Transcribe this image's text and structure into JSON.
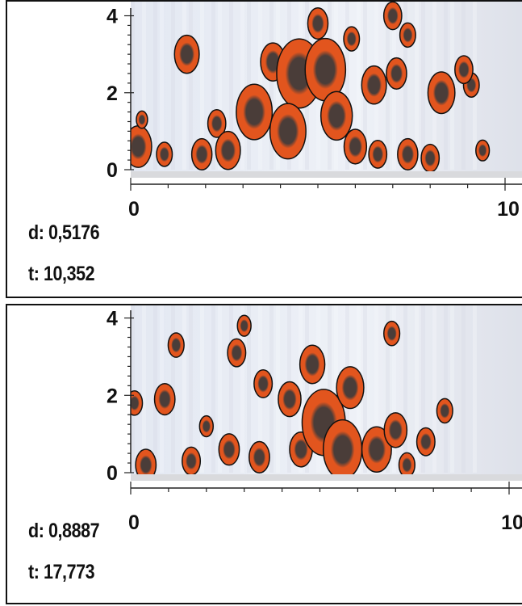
{
  "chart_data": [
    {
      "type": "heatmap",
      "title": "",
      "xlabel": "",
      "ylabel": "",
      "xlim": [
        0,
        10
      ],
      "ylim": [
        0,
        4.2
      ],
      "x_ticks": [
        "0",
        "10"
      ],
      "y_ticks": [
        "0",
        "2",
        "4"
      ],
      "readouts": {
        "d": "d: 0,5176",
        "t": "t: 10,352"
      },
      "colors": {
        "background": "#e8ecf4",
        "low": "#dfe4ee",
        "mid": "#e2551e",
        "high": "#4a3d39",
        "outline": "#111111"
      },
      "blobs": [
        {
          "x": 0.2,
          "y": 0.6,
          "r": 0.6
        },
        {
          "x": 0.3,
          "y": 1.3,
          "r": 0.25
        },
        {
          "x": 0.9,
          "y": 0.4,
          "r": 0.35
        },
        {
          "x": 1.5,
          "y": 3.0,
          "r": 0.55
        },
        {
          "x": 1.9,
          "y": 0.4,
          "r": 0.45
        },
        {
          "x": 2.3,
          "y": 1.2,
          "r": 0.4
        },
        {
          "x": 2.6,
          "y": 0.5,
          "r": 0.55
        },
        {
          "x": 3.3,
          "y": 1.5,
          "r": 0.8
        },
        {
          "x": 3.8,
          "y": 2.8,
          "r": 0.55
        },
        {
          "x": 4.5,
          "y": 2.5,
          "r": 1.0
        },
        {
          "x": 4.2,
          "y": 1.0,
          "r": 0.8
        },
        {
          "x": 5.2,
          "y": 2.6,
          "r": 0.9
        },
        {
          "x": 5.0,
          "y": 3.8,
          "r": 0.45
        },
        {
          "x": 5.5,
          "y": 1.4,
          "r": 0.7
        },
        {
          "x": 6.0,
          "y": 0.6,
          "r": 0.5
        },
        {
          "x": 6.5,
          "y": 2.2,
          "r": 0.55
        },
        {
          "x": 6.6,
          "y": 0.4,
          "r": 0.4
        },
        {
          "x": 7.1,
          "y": 2.5,
          "r": 0.45
        },
        {
          "x": 7.0,
          "y": 4.0,
          "r": 0.4
        },
        {
          "x": 7.4,
          "y": 3.5,
          "r": 0.35
        },
        {
          "x": 7.4,
          "y": 0.4,
          "r": 0.45
        },
        {
          "x": 8.0,
          "y": 0.3,
          "r": 0.4
        },
        {
          "x": 8.3,
          "y": 2.0,
          "r": 0.6
        },
        {
          "x": 9.1,
          "y": 2.2,
          "r": 0.35
        },
        {
          "x": 9.4,
          "y": 0.5,
          "r": 0.3
        },
        {
          "x": 5.9,
          "y": 3.4,
          "r": 0.35
        },
        {
          "x": 8.9,
          "y": 2.6,
          "r": 0.4
        }
      ]
    },
    {
      "type": "heatmap",
      "title": "",
      "xlabel": "",
      "ylabel": "",
      "xlim": [
        0,
        10
      ],
      "ylim": [
        0,
        4.2
      ],
      "x_ticks": [
        "0",
        "10"
      ],
      "y_ticks": [
        "0",
        "2",
        "4"
      ],
      "readouts": {
        "d": "d: 0,8887",
        "t": "t: 17,773"
      },
      "colors": {
        "background": "#e8ecf4",
        "low": "#dfe4ee",
        "mid": "#e2551e",
        "high": "#4a3d39",
        "outline": "#111111"
      },
      "blobs": [
        {
          "x": 0.1,
          "y": 1.8,
          "r": 0.35
        },
        {
          "x": 0.4,
          "y": 0.2,
          "r": 0.45
        },
        {
          "x": 0.9,
          "y": 1.9,
          "r": 0.45
        },
        {
          "x": 1.2,
          "y": 3.3,
          "r": 0.35
        },
        {
          "x": 1.6,
          "y": 0.3,
          "r": 0.4
        },
        {
          "x": 2.6,
          "y": 0.6,
          "r": 0.45
        },
        {
          "x": 2.8,
          "y": 3.1,
          "r": 0.4
        },
        {
          "x": 3.4,
          "y": 0.4,
          "r": 0.45
        },
        {
          "x": 3.5,
          "y": 2.3,
          "r": 0.4
        },
        {
          "x": 4.2,
          "y": 1.9,
          "r": 0.5
        },
        {
          "x": 4.5,
          "y": 0.6,
          "r": 0.5
        },
        {
          "x": 4.8,
          "y": 2.8,
          "r": 0.55
        },
        {
          "x": 5.1,
          "y": 1.3,
          "r": 0.95
        },
        {
          "x": 5.6,
          "y": 0.6,
          "r": 0.85
        },
        {
          "x": 5.8,
          "y": 2.2,
          "r": 0.6
        },
        {
          "x": 6.5,
          "y": 0.6,
          "r": 0.65
        },
        {
          "x": 7.0,
          "y": 1.1,
          "r": 0.5
        },
        {
          "x": 7.3,
          "y": 0.2,
          "r": 0.35
        },
        {
          "x": 7.8,
          "y": 0.8,
          "r": 0.4
        },
        {
          "x": 8.3,
          "y": 1.6,
          "r": 0.35
        },
        {
          "x": 6.9,
          "y": 3.6,
          "r": 0.35
        },
        {
          "x": 3.0,
          "y": 3.8,
          "r": 0.3
        },
        {
          "x": 2.0,
          "y": 1.2,
          "r": 0.3
        }
      ]
    }
  ]
}
